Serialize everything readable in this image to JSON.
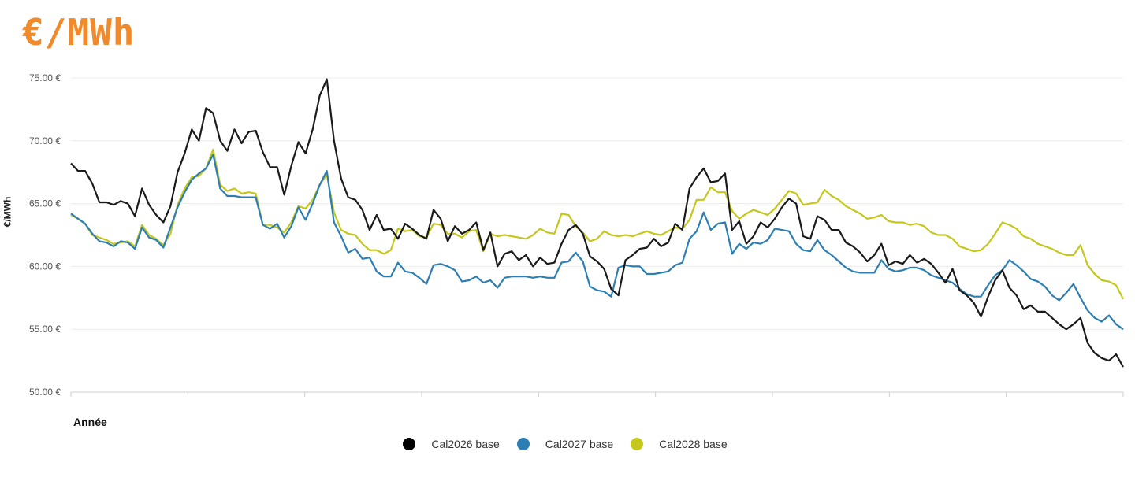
{
  "header": {
    "unit_title": "€/MWh"
  },
  "chart_data": {
    "type": "line",
    "title": "",
    "xlabel": "Année",
    "ylabel": "€/MWh",
    "ylim": [
      50,
      75
    ],
    "yticks": [
      {
        "value": 75,
        "label": "75.00 €"
      },
      {
        "value": 70,
        "label": "70.00 €"
      },
      {
        "value": 65,
        "label": "65.00 €"
      },
      {
        "value": 60,
        "label": "60.00 €"
      },
      {
        "value": 55,
        "label": "55.00 €"
      },
      {
        "value": 50,
        "label": "50.00 €"
      }
    ],
    "grid": "horizontal",
    "legend_position": "bottom-center",
    "series": [
      {
        "name": "Cal2026 base",
        "color": "#1a1a1a",
        "values": [
          68.2,
          67.6,
          67.6,
          66.6,
          65.1,
          65.1,
          64.9,
          65.2,
          65.0,
          64.0,
          66.2,
          64.9,
          64.1,
          63.5,
          64.8,
          67.5,
          69.0,
          70.9,
          70.0,
          72.6,
          72.2,
          70.0,
          69.2,
          70.9,
          69.8,
          70.7,
          70.8,
          69.1,
          67.9,
          67.9,
          65.7,
          68.0,
          69.9,
          69.0,
          70.9,
          73.6,
          74.9,
          70.0,
          67.0,
          65.5,
          65.3,
          64.5,
          62.9,
          64.1,
          62.9,
          63.0,
          62.2,
          63.4,
          63.0,
          62.5,
          62.2,
          64.5,
          63.8,
          62.0,
          63.2,
          62.6,
          62.9,
          63.5,
          61.3,
          62.7,
          60.0,
          61.0,
          61.2,
          60.5,
          60.9,
          60.0,
          60.7,
          60.2,
          60.3,
          61.8,
          62.9,
          63.3,
          62.6,
          60.8,
          60.4,
          59.8,
          58.2,
          57.7,
          60.5,
          60.9,
          61.4,
          61.5,
          62.2,
          61.6,
          61.9,
          63.4,
          62.9,
          66.2,
          67.1,
          67.8,
          66.7,
          66.8,
          67.4,
          62.9,
          63.6,
          61.8,
          62.4,
          63.5,
          63.1,
          63.8,
          64.7,
          65.4,
          65.0,
          62.4,
          62.2,
          64.0,
          63.7,
          62.9,
          62.9,
          61.9,
          61.6,
          61.1,
          60.4,
          60.9,
          61.8,
          60.1,
          60.4,
          60.2,
          60.9,
          60.3,
          60.6,
          60.2,
          59.5,
          58.7,
          59.8,
          58.1,
          57.7,
          57.1,
          56.0,
          57.6,
          58.9,
          59.7,
          58.3,
          57.7,
          56.6,
          56.9,
          56.4,
          56.4,
          55.9,
          55.4,
          55.0,
          55.4,
          55.9,
          53.9,
          53.1,
          52.7,
          52.5,
          53.0,
          52.0
        ]
      },
      {
        "name": "Cal2027 base",
        "color": "#2d7fb3",
        "values": [
          64.2,
          63.8,
          63.4,
          62.6,
          62.0,
          61.9,
          61.6,
          62.0,
          61.9,
          61.4,
          63.1,
          62.3,
          62.1,
          61.5,
          63.1,
          64.7,
          65.9,
          66.9,
          67.4,
          67.8,
          68.9,
          66.2,
          65.6,
          65.6,
          65.5,
          65.5,
          65.5,
          63.3,
          63.0,
          63.4,
          62.3,
          63.2,
          64.7,
          63.7,
          65.0,
          66.5,
          67.6,
          63.5,
          62.4,
          61.1,
          61.4,
          60.6,
          60.7,
          59.6,
          59.2,
          59.2,
          60.3,
          59.6,
          59.5,
          59.1,
          58.6,
          60.1,
          60.2,
          60.0,
          59.7,
          58.8,
          58.9,
          59.2,
          58.7,
          58.9,
          58.3,
          59.1,
          59.2,
          59.2,
          59.2,
          59.1,
          59.2,
          59.1,
          59.1,
          60.3,
          60.4,
          61.1,
          60.4,
          58.4,
          58.1,
          58.0,
          57.6,
          59.9,
          60.1,
          60.0,
          60.0,
          59.4,
          59.4,
          59.5,
          59.6,
          60.1,
          60.3,
          62.2,
          62.8,
          64.3,
          62.9,
          63.4,
          63.5,
          61.0,
          61.8,
          61.4,
          61.9,
          61.8,
          62.1,
          63.0,
          62.9,
          62.8,
          61.8,
          61.3,
          61.2,
          62.1,
          61.3,
          60.9,
          60.4,
          59.9,
          59.6,
          59.5,
          59.5,
          59.5,
          60.5,
          59.8,
          59.6,
          59.7,
          59.9,
          59.9,
          59.7,
          59.3,
          59.1,
          58.9,
          58.7,
          58.2,
          57.8,
          57.6,
          57.6,
          58.5,
          59.3,
          59.7,
          60.5,
          60.1,
          59.6,
          59.0,
          58.8,
          58.4,
          57.7,
          57.3,
          57.9,
          58.6,
          57.5,
          56.5,
          55.9,
          55.6,
          56.1,
          55.4,
          55.0
        ]
      },
      {
        "name": "Cal2028 base",
        "color": "#c5c71c",
        "values": [
          64.1,
          63.8,
          63.4,
          62.5,
          62.3,
          62.1,
          61.8,
          61.9,
          62.0,
          61.6,
          63.3,
          62.5,
          62.2,
          61.7,
          62.6,
          64.9,
          66.2,
          67.1,
          67.2,
          67.8,
          69.3,
          66.5,
          66.0,
          66.2,
          65.8,
          65.9,
          65.8,
          63.3,
          63.3,
          63.1,
          62.7,
          63.5,
          64.8,
          64.6,
          65.3,
          66.5,
          67.3,
          64.3,
          62.9,
          62.6,
          62.5,
          61.8,
          61.3,
          61.3,
          61.0,
          61.3,
          63.0,
          62.8,
          62.9,
          62.4,
          62.3,
          63.4,
          63.3,
          62.6,
          62.6,
          62.3,
          62.8,
          62.9,
          61.2,
          62.6,
          62.4,
          62.5,
          62.4,
          62.3,
          62.2,
          62.5,
          63.0,
          62.7,
          62.6,
          64.2,
          64.1,
          63.2,
          62.7,
          62.0,
          62.2,
          62.8,
          62.5,
          62.4,
          62.5,
          62.4,
          62.6,
          62.8,
          62.6,
          62.5,
          62.8,
          63.1,
          63.0,
          63.7,
          65.3,
          65.3,
          66.3,
          65.9,
          65.9,
          64.4,
          63.8,
          64.2,
          64.5,
          64.3,
          64.1,
          64.6,
          65.3,
          66.0,
          65.8,
          64.9,
          65.0,
          65.1,
          66.1,
          65.6,
          65.3,
          64.8,
          64.5,
          64.2,
          63.8,
          63.9,
          64.1,
          63.6,
          63.5,
          63.5,
          63.3,
          63.4,
          63.2,
          62.7,
          62.5,
          62.5,
          62.2,
          61.6,
          61.4,
          61.2,
          61.3,
          61.8,
          62.6,
          63.5,
          63.3,
          63.0,
          62.4,
          62.2,
          61.8,
          61.6,
          61.4,
          61.1,
          60.9,
          60.9,
          61.7,
          60.1,
          59.4,
          58.9,
          58.8,
          58.5,
          57.4
        ]
      }
    ]
  }
}
